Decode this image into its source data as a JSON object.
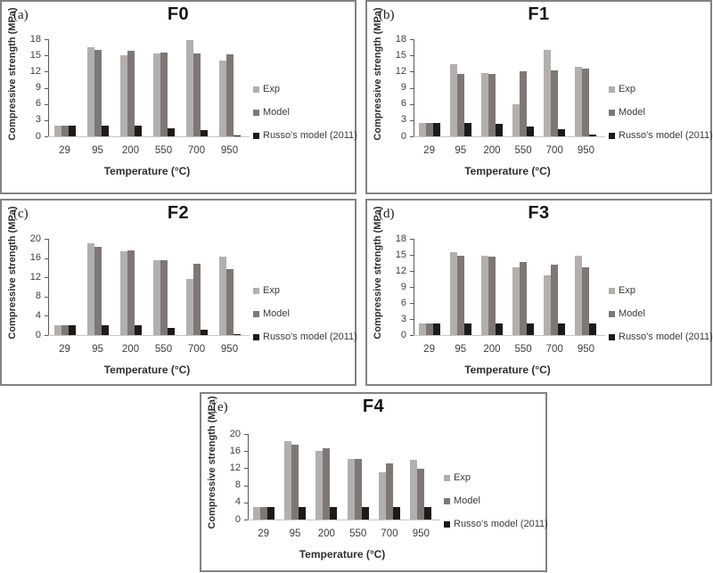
{
  "figure": {
    "description": "Five bar charts comparing experimental and modeled compressive strength versus temperature",
    "colors": {
      "exp": "#b3afac",
      "model": "#7d7875",
      "russo": "#1d1b1a",
      "axis_text": "#3d3d3d",
      "panel_border": "#828282"
    }
  },
  "chart_data": [
    {
      "type": "bar",
      "panel_letter": "(a)",
      "title": "F0",
      "xlabel": "Temperature (°C)",
      "ylabel": "Compressive strength (MPa)",
      "ylim": [
        0,
        18
      ],
      "ystep": 3,
      "yticks": [
        0,
        3,
        6,
        9,
        12,
        15,
        18
      ],
      "categories": [
        "29",
        "95",
        "200",
        "550",
        "700",
        "950"
      ],
      "legend_position": "right",
      "grid": false,
      "series": [
        {
          "name": "Exp",
          "color": "#b3afac",
          "values": [
            2.0,
            16.5,
            15.0,
            15.3,
            17.8,
            14.0
          ]
        },
        {
          "name": "Model",
          "color": "#7d7875",
          "values": [
            2.0,
            16.1,
            15.9,
            15.6,
            15.4,
            15.2
          ]
        },
        {
          "name": "Russo's model (2011)",
          "color": "#1d1b1a",
          "values": [
            2.0,
            2.0,
            2.0,
            1.5,
            1.1,
            0.2
          ]
        }
      ]
    },
    {
      "type": "bar",
      "panel_letter": "(b)",
      "title": "F1",
      "xlabel": "Temperature (°C)",
      "ylabel": "Compressive strength (MPa)",
      "ylim": [
        0,
        18
      ],
      "ystep": 3,
      "yticks": [
        0,
        3,
        6,
        9,
        12,
        15,
        18
      ],
      "categories": [
        "29",
        "95",
        "200",
        "550",
        "700",
        "950"
      ],
      "legend_position": "right",
      "grid": false,
      "series": [
        {
          "name": "Exp",
          "color": "#b3afac",
          "values": [
            2.4,
            13.3,
            11.7,
            5.9,
            16.1,
            12.9
          ]
        },
        {
          "name": "Model",
          "color": "#7d7875",
          "values": [
            2.4,
            11.5,
            11.6,
            12.0,
            12.2,
            12.5
          ]
        },
        {
          "name": "Russo's model (2011)",
          "color": "#1d1b1a",
          "values": [
            2.4,
            2.4,
            2.3,
            1.8,
            1.3,
            0.3
          ]
        }
      ]
    },
    {
      "type": "bar",
      "panel_letter": "(c)",
      "title": "F2",
      "xlabel": "Temperature (°C)",
      "ylabel": "Compressive strength (MPa)",
      "ylim": [
        0,
        20
      ],
      "ystep": 4,
      "yticks": [
        0,
        4,
        8,
        12,
        16,
        20
      ],
      "categories": [
        "29",
        "95",
        "200",
        "550",
        "700",
        "950"
      ],
      "legend_position": "right",
      "grid": false,
      "series": [
        {
          "name": "Exp",
          "color": "#b3afac",
          "values": [
            2.1,
            19.0,
            17.5,
            15.5,
            11.7,
            16.3
          ]
        },
        {
          "name": "Model",
          "color": "#7d7875",
          "values": [
            2.1,
            18.4,
            17.6,
            15.6,
            14.9,
            13.7
          ]
        },
        {
          "name": "Russo's model (2011)",
          "color": "#1d1b1a",
          "values": [
            2.1,
            2.1,
            2.0,
            1.5,
            1.1,
            0.2
          ]
        }
      ]
    },
    {
      "type": "bar",
      "panel_letter": "(d)",
      "title": "F3",
      "xlabel": "Temperature (°C)",
      "ylabel": "Compressive strength (MPa)",
      "ylim": [
        0,
        18
      ],
      "ystep": 3,
      "yticks": [
        0,
        3,
        6,
        9,
        12,
        15,
        18
      ],
      "categories": [
        "29",
        "95",
        "200",
        "550",
        "700",
        "950"
      ],
      "legend_position": "right",
      "grid": false,
      "series": [
        {
          "name": "Exp",
          "color": "#b3afac",
          "values": [
            2.2,
            15.5,
            14.9,
            12.7,
            11.1,
            14.8
          ]
        },
        {
          "name": "Model",
          "color": "#7d7875",
          "values": [
            2.2,
            14.9,
            14.6,
            13.6,
            13.2,
            12.6
          ]
        },
        {
          "name": "Russo's model (2011)",
          "color": "#1d1b1a",
          "values": [
            2.2,
            2.2,
            2.2,
            2.2,
            2.2,
            2.2
          ]
        }
      ]
    },
    {
      "type": "bar",
      "panel_letter": "(e)",
      "title": "F4",
      "xlabel": "Temperature (°C)",
      "ylabel": "Compressive strength (MPa)",
      "ylim": [
        0,
        20
      ],
      "ystep": 4,
      "yticks": [
        0,
        4,
        8,
        12,
        16,
        20
      ],
      "categories": [
        "29",
        "95",
        "200",
        "550",
        "700",
        "950"
      ],
      "legend_position": "right",
      "grid": false,
      "series": [
        {
          "name": "Exp",
          "color": "#b3afac",
          "values": [
            3.0,
            18.3,
            16.1,
            14.1,
            11.1,
            13.9
          ]
        },
        {
          "name": "Model",
          "color": "#7d7875",
          "values": [
            3.0,
            17.6,
            16.6,
            14.1,
            13.1,
            11.9
          ]
        },
        {
          "name": "Russo's model (2011)",
          "color": "#1d1b1a",
          "values": [
            3.0,
            3.0,
            3.0,
            3.0,
            3.0,
            3.0
          ]
        }
      ]
    }
  ]
}
